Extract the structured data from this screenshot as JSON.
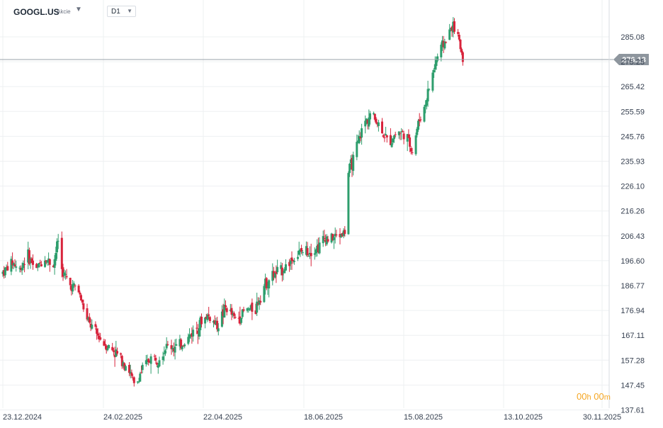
{
  "header": {
    "symbol": "GOOGL.US",
    "asset_type": "Akcie",
    "timeframe": "D1"
  },
  "countdown": {
    "h": "00",
    "h_unit": "h",
    "m": "00",
    "m_unit": "m"
  },
  "icons": {
    "symbol_menu": "caret-down-icon",
    "timeframe_menu": "caret-down-icon"
  },
  "colors": {
    "up": "#2e9e6d",
    "down": "#d8243c",
    "price_line": "#9aa3ab",
    "price_tag": "#8e969e",
    "countdown": "#f5a623"
  },
  "chart_data": {
    "type": "candlestick",
    "symbol": "GOOGL.US",
    "timeframe": "D1",
    "current_price": "276.13",
    "y_ticks": [
      "285.08",
      "275.25",
      "265.42",
      "255.59",
      "245.76",
      "235.93",
      "226.10",
      "216.26",
      "206.43",
      "196.60",
      "186.77",
      "176.94",
      "167.11",
      "157.28",
      "147.45",
      "137.61"
    ],
    "x_ticks": [
      "23.12.2024",
      "24.02.2025",
      "22.04.2025",
      "18.06.2025",
      "15.08.2025",
      "13.10.2025",
      "30.11.2025"
    ],
    "ylim": [
      137.61,
      291
    ],
    "grid": true,
    "legend": "none",
    "anchors": [
      [
        0,
        192
      ],
      [
        8,
        196
      ],
      [
        14,
        193
      ],
      [
        20,
        199
      ],
      [
        28,
        193
      ],
      [
        34,
        198
      ],
      [
        42,
        195
      ],
      [
        46,
        205
      ],
      [
        48,
        207
      ],
      [
        49,
        193
      ],
      [
        55,
        187
      ],
      [
        62,
        186
      ],
      [
        70,
        173
      ],
      [
        77,
        168
      ],
      [
        84,
        164
      ],
      [
        92,
        161
      ],
      [
        100,
        157
      ],
      [
        105,
        153
      ],
      [
        110,
        146
      ],
      [
        114,
        152
      ],
      [
        122,
        158
      ],
      [
        128,
        158
      ],
      [
        137,
        163
      ],
      [
        145,
        162
      ],
      [
        152,
        165
      ],
      [
        160,
        170
      ],
      [
        170,
        175
      ],
      [
        178,
        171
      ],
      [
        185,
        178
      ],
      [
        194,
        173
      ],
      [
        201,
        177
      ],
      [
        210,
        178
      ],
      [
        216,
        186
      ],
      [
        222,
        190
      ],
      [
        232,
        193
      ],
      [
        240,
        197
      ],
      [
        248,
        200
      ],
      [
        256,
        201
      ],
      [
        262,
        202
      ],
      [
        268,
        206
      ],
      [
        272,
        205
      ],
      [
        284,
        208
      ],
      [
        286,
        230
      ],
      [
        292,
        238
      ],
      [
        300,
        251
      ],
      [
        306,
        255
      ],
      [
        314,
        249
      ],
      [
        320,
        243
      ],
      [
        328,
        248
      ],
      [
        335,
        246
      ],
      [
        340,
        240
      ],
      [
        345,
        251
      ],
      [
        350,
        257
      ],
      [
        355,
        267
      ],
      [
        360,
        276
      ],
      [
        364,
        281
      ],
      [
        370,
        285
      ],
      [
        373,
        290
      ],
      [
        378,
        285
      ],
      [
        381,
        279
      ],
      [
        384,
        272
      ]
    ]
  }
}
